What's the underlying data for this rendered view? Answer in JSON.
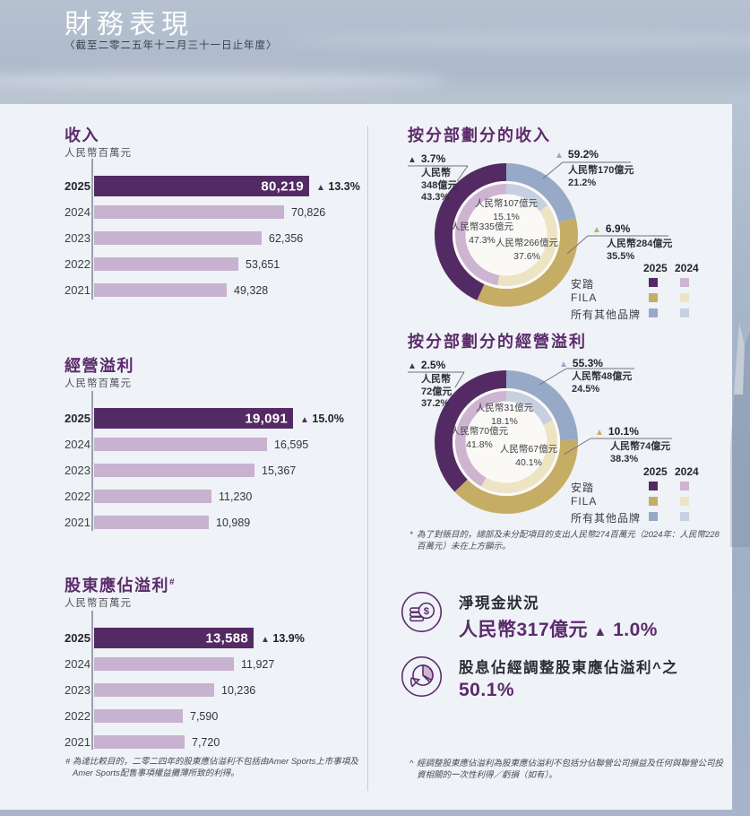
{
  "page": {
    "title": "財務表現",
    "subtitle": "〈截至二零二五年十二月三十一日止年度〉"
  },
  "colors": {
    "accent": "#5B2B6B",
    "anta_2025": "#542A64",
    "anta_2024": "#CDB4D1",
    "fila_2025": "#C6AD65",
    "fila_2024": "#EDE4C3",
    "others_2025": "#96A9C7",
    "others_2024": "#C6D0E0",
    "bar_past": "#C7B2CF"
  },
  "icons": {
    "net_cash": "coins-icon",
    "dividend": "pie-chart-icon",
    "increase": "triangle-up"
  },
  "legend": {
    "columns": [
      "2025",
      "2024"
    ],
    "rows": [
      {
        "label": "安踏",
        "key": "anta"
      },
      {
        "label": "FILA",
        "key": "fila"
      },
      {
        "label": "所有其他品牌",
        "key": "others"
      }
    ]
  },
  "chart_data": [
    {
      "key": "revenue",
      "type": "bar",
      "orientation": "horizontal",
      "title": "收入",
      "unit": "人民幣百萬元",
      "categories": [
        "2025",
        "2024",
        "2023",
        "2022",
        "2021"
      ],
      "values": [
        80219,
        70826,
        62356,
        53651,
        49328
      ],
      "yoy_delta_label": "13.3%"
    },
    {
      "key": "operating_profit",
      "type": "bar",
      "orientation": "horizontal",
      "title": "經營溢利",
      "unit": "人民幣百萬元",
      "categories": [
        "2025",
        "2024",
        "2023",
        "2022",
        "2021"
      ],
      "values": [
        19091,
        16595,
        15367,
        11230,
        10989
      ],
      "yoy_delta_label": "15.0%"
    },
    {
      "key": "shareholders_profit",
      "type": "bar",
      "orientation": "horizontal",
      "title": "股東應佔溢利",
      "title_marker": "#",
      "unit": "人民幣百萬元",
      "categories": [
        "2025",
        "2024",
        "2023",
        "2022",
        "2021"
      ],
      "values": [
        13588,
        11927,
        10236,
        7590,
        7720
      ],
      "yoy_delta_label": "13.9%"
    },
    {
      "key": "revenue_by_segment",
      "type": "pie",
      "variant": "two-ring-donut",
      "title": "按分部劃分的收入",
      "order": "clockwise-from-12",
      "rings": [
        {
          "year": "2025",
          "position": "outer",
          "segments": [
            {
              "brand": "所有其他品牌",
              "brand_key": "others",
              "pct": 21.2,
              "amount": "人民幣170億元",
              "yoy_delta": "59.2%"
            },
            {
              "brand": "FILA",
              "brand_key": "fila",
              "pct": 35.5,
              "amount": "人民幣284億元",
              "yoy_delta": "6.9%"
            },
            {
              "brand": "安踏",
              "brand_key": "anta",
              "pct": 43.3,
              "amount": "人民幣348億元",
              "yoy_delta": "3.7%"
            }
          ]
        },
        {
          "year": "2024",
          "position": "inner",
          "segments": [
            {
              "brand": "所有其他品牌",
              "brand_key": "others",
              "pct": 15.1,
              "amount": "人民幣107億元"
            },
            {
              "brand": "FILA",
              "brand_key": "fila",
              "pct": 37.6,
              "amount": "人民幣266億元"
            },
            {
              "brand": "安踏",
              "brand_key": "anta",
              "pct": 47.3,
              "amount": "人民幣335億元"
            }
          ]
        }
      ],
      "callouts": [
        {
          "brand_key": "anta",
          "delta": "3.7%",
          "lines": [
            "人民幣",
            "348億元",
            "43.3%"
          ]
        },
        {
          "brand_key": "others",
          "delta": "59.2%",
          "lines": [
            "人民幣170億元",
            "21.2%"
          ]
        },
        {
          "brand_key": "fila",
          "delta": "6.9%",
          "lines": [
            "人民幣284億元",
            "35.5%"
          ]
        }
      ],
      "center_labels": [
        [
          "人民幣107億元",
          "15.1%"
        ],
        [
          "人民幣335億元",
          "47.3%"
        ],
        [
          "人民幣266億元",
          "37.6%"
        ]
      ]
    },
    {
      "key": "operating_profit_by_segment",
      "type": "pie",
      "variant": "two-ring-donut",
      "title": "按分部劃分的經營溢利",
      "order": "clockwise-from-12",
      "rings": [
        {
          "year": "2025",
          "position": "outer",
          "segments": [
            {
              "brand": "所有其他品牌",
              "brand_key": "others",
              "pct": 24.5,
              "amount": "人民幣48億元",
              "yoy_delta": "55.3%"
            },
            {
              "brand": "FILA",
              "brand_key": "fila",
              "pct": 38.3,
              "amount": "人民幣74億元",
              "yoy_delta": "10.1%"
            },
            {
              "brand": "安踏",
              "brand_key": "anta",
              "pct": 37.2,
              "amount": "人民幣72億元",
              "yoy_delta": "2.5%"
            }
          ]
        },
        {
          "year": "2024",
          "position": "inner",
          "segments": [
            {
              "brand": "所有其他品牌",
              "brand_key": "others",
              "pct": 18.1,
              "amount": "人民幣31億元"
            },
            {
              "brand": "FILA",
              "brand_key": "fila",
              "pct": 40.1,
              "amount": "人民幣67億元"
            },
            {
              "brand": "安踏",
              "brand_key": "anta",
              "pct": 41.8,
              "amount": "人民幣70億元"
            }
          ]
        }
      ],
      "callouts": [
        {
          "brand_key": "anta",
          "delta": "2.5%",
          "lines": [
            "人民幣",
            "72億元",
            "37.2%"
          ]
        },
        {
          "brand_key": "others",
          "delta": "55.3%",
          "lines": [
            "人民幣48億元",
            "24.5%"
          ]
        },
        {
          "brand_key": "fila",
          "delta": "10.1%",
          "lines": [
            "人民幣74億元",
            "38.3%"
          ]
        }
      ],
      "center_labels": [
        [
          "人民幣31億元",
          "18.1%"
        ],
        [
          "人民幣70億元",
          "41.8%"
        ],
        [
          "人民幣67億元",
          "40.1%"
        ]
      ]
    }
  ],
  "highlights": {
    "net_cash": {
      "label": "淨現金狀況",
      "value": "人民幣317億元",
      "delta": "1.0%"
    },
    "dividend": {
      "label": "股息佔經調整股東應佔溢利^之",
      "value": "50.1%"
    }
  },
  "footnotes": {
    "left": {
      "marker": "#",
      "text": "為達比較目的，二零二四年的股東應佔溢利不包括由Amer Sports上市事項及Amer Sports配售事項權益攤薄所致的利得。"
    },
    "segment": {
      "marker": "*",
      "text": "為了對賬目的，總部及未分配項目的支出人民幣274百萬元（2024年：人民幣228百萬元）未在上方顯示。"
    },
    "right": {
      "marker": "^",
      "text": "經調整股東應佔溢利為股東應佔溢利不包括分佔聯營公司損益及任何與聯營公司投資相關的一次性利得／虧損（如有）。"
    }
  }
}
